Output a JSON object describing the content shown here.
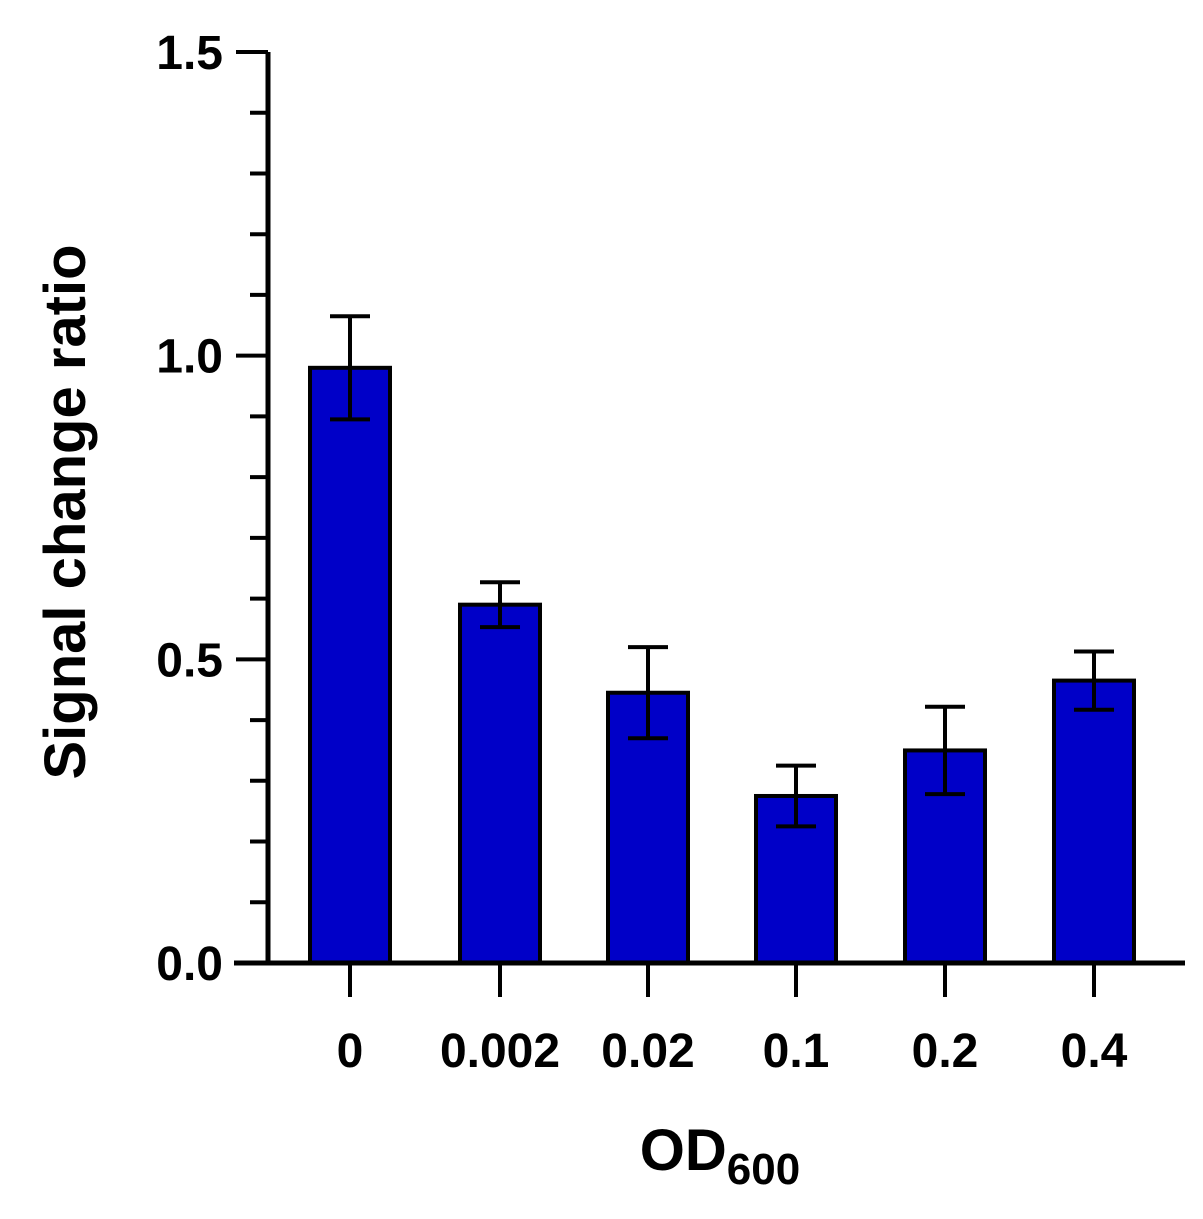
{
  "chart_data": {
    "type": "bar",
    "title": "",
    "xlabel": "OD",
    "xlabel_subscript": "600",
    "ylabel": "Signal change ratio",
    "categories": [
      "0",
      "0.002",
      "0.02",
      "0.1",
      "0.2",
      "0.4"
    ],
    "series": [
      {
        "name": "Signal change ratio",
        "values": [
          0.98,
          0.59,
          0.445,
          0.275,
          0.35,
          0.465
        ],
        "errors": [
          0.085,
          0.037,
          0.075,
          0.05,
          0.072,
          0.048
        ]
      }
    ],
    "ylim": [
      0,
      1.5
    ],
    "yticks_major": [
      {
        "value": 0,
        "label": "0.0"
      },
      {
        "value": 0.5,
        "label": "0.5"
      },
      {
        "value": 1.0,
        "label": "1.0"
      },
      {
        "value": 1.5,
        "label": "1.5"
      }
    ],
    "yticks_minor": [
      0.1,
      0.2,
      0.3,
      0.4,
      0.6,
      0.7,
      0.8,
      0.9,
      1.1,
      1.2,
      1.3,
      1.4
    ],
    "grid": false,
    "bar_color": "#0000c8",
    "edge_color": "#000000"
  }
}
